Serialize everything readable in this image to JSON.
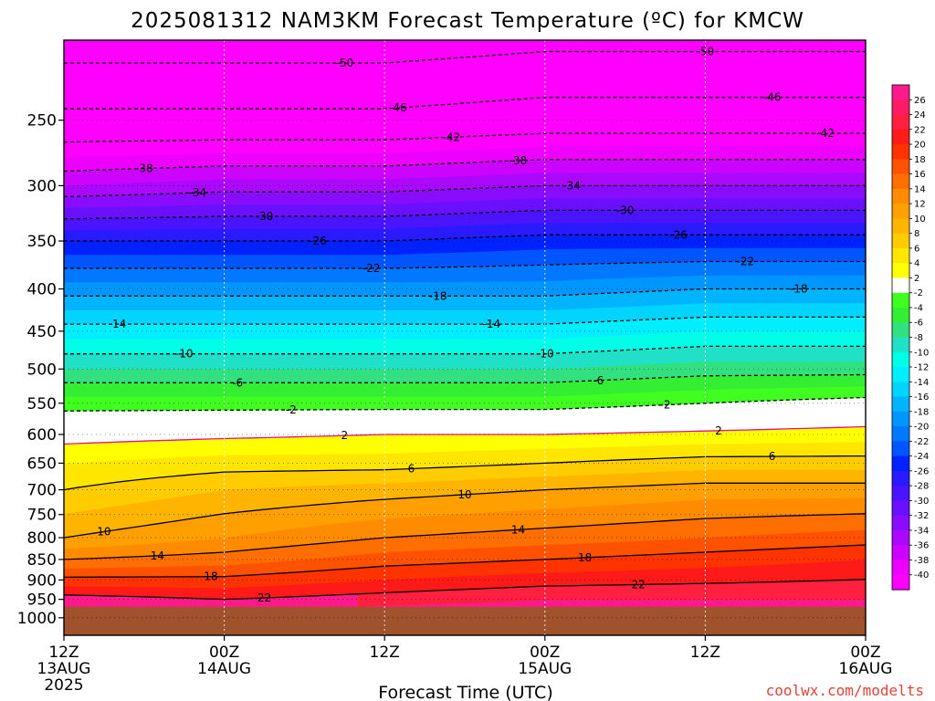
{
  "chart_data": {
    "type": "heatmap",
    "title": "2025081312 NAM3KM Forecast Temperature (ºC) for KMCW",
    "xlabel": "Forecast Time (UTC)",
    "ylabel": "",
    "x_ticks": [
      {
        "hours": 0,
        "lines": [
          "12Z",
          "13AUG",
          "2025"
        ]
      },
      {
        "hours": 12,
        "lines": [
          "00Z",
          "14AUG"
        ]
      },
      {
        "hours": 24,
        "lines": [
          "12Z"
        ]
      },
      {
        "hours": 36,
        "lines": [
          "00Z",
          "15AUG"
        ]
      },
      {
        "hours": 48,
        "lines": [
          "12Z"
        ]
      },
      {
        "hours": 60,
        "lines": [
          "00Z",
          "16AUG"
        ]
      }
    ],
    "xlim": [
      0,
      60
    ],
    "y_ticks": [
      250,
      300,
      350,
      400,
      450,
      500,
      550,
      600,
      650,
      700,
      750,
      800,
      850,
      900,
      950,
      1000
    ],
    "ylim": [
      1050,
      200
    ],
    "y_scale": "log",
    "ground_pressure": 970,
    "colorbar": {
      "levels": [
        26,
        24,
        22,
        20,
        18,
        16,
        14,
        12,
        10,
        8,
        6,
        4,
        2,
        -2,
        -4,
        -6,
        -8,
        -10,
        -12,
        -14,
        -16,
        -18,
        -20,
        -22,
        -24,
        -26,
        -28,
        -30,
        -32,
        -34,
        -36,
        -38,
        -40
      ],
      "colors": [
        "#ff1a8c",
        "#ff1a66",
        "#ff2040",
        "#ff1a1a",
        "#ff3300",
        "#ff5200",
        "#ff6e00",
        "#ff8c00",
        "#ffa000",
        "#ffb400",
        "#ffcc00",
        "#ffe600",
        "#ffff00",
        "#ffffff",
        "#40ff20",
        "#33ee33",
        "#33e080",
        "#20e0c8",
        "#00ffe6",
        "#00eeff",
        "#00d4ff",
        "#00b4ff",
        "#0096ff",
        "#0078ff",
        "#0055ff",
        "#0022ff",
        "#2a1aff",
        "#4a14ff",
        "#6a10ff",
        "#8a0cff",
        "#aa08ff",
        "#cc04ff",
        "#ee00ff",
        "#ff00ff"
      ]
    },
    "profiles": [
      {
        "hours": 0,
        "temps": [
          {
            "p": 1000,
            "t": 25
          },
          {
            "p": 950,
            "t": 23
          },
          {
            "p": 850,
            "t": 14
          },
          {
            "p": 800,
            "t": 10
          },
          {
            "p": 700,
            "t": 6
          },
          {
            "p": 650,
            "t": 4
          },
          {
            "p": 600,
            "t": 1
          },
          {
            "p": 550,
            "t": -3
          },
          {
            "p": 500,
            "t": -8
          },
          {
            "p": 450,
            "t": -13
          },
          {
            "p": 400,
            "t": -19
          },
          {
            "p": 350,
            "t": -26
          },
          {
            "p": 300,
            "t": -36
          },
          {
            "p": 250,
            "t": -45
          },
          {
            "p": 200,
            "t": -52
          }
        ]
      },
      {
        "hours": 12,
        "temps": [
          {
            "p": 1000,
            "t": 25
          },
          {
            "p": 950,
            "t": 22
          },
          {
            "p": 850,
            "t": 15
          },
          {
            "p": 800,
            "t": 12
          },
          {
            "p": 700,
            "t": 8
          },
          {
            "p": 650,
            "t": 5
          },
          {
            "p": 600,
            "t": 1.5
          },
          {
            "p": 550,
            "t": -3
          },
          {
            "p": 500,
            "t": -8
          },
          {
            "p": 450,
            "t": -13
          },
          {
            "p": 400,
            "t": -19
          },
          {
            "p": 350,
            "t": -26
          },
          {
            "p": 300,
            "t": -35
          },
          {
            "p": 250,
            "t": -45
          },
          {
            "p": 200,
            "t": -52
          }
        ]
      },
      {
        "hours": 24,
        "temps": [
          {
            "p": 1000,
            "t": 26
          },
          {
            "p": 950,
            "t": 23
          },
          {
            "p": 850,
            "t": 17
          },
          {
            "p": 800,
            "t": 14
          },
          {
            "p": 700,
            "t": 9
          },
          {
            "p": 650,
            "t": 5
          },
          {
            "p": 600,
            "t": 2
          },
          {
            "p": 550,
            "t": -3
          },
          {
            "p": 500,
            "t": -8
          },
          {
            "p": 450,
            "t": -13
          },
          {
            "p": 400,
            "t": -19
          },
          {
            "p": 350,
            "t": -26
          },
          {
            "p": 300,
            "t": -35
          },
          {
            "p": 250,
            "t": -45
          },
          {
            "p": 200,
            "t": -52
          }
        ]
      },
      {
        "hours": 36,
        "temps": [
          {
            "p": 1000,
            "t": 26
          },
          {
            "p": 950,
            "t": 24
          },
          {
            "p": 850,
            "t": 18
          },
          {
            "p": 800,
            "t": 15
          },
          {
            "p": 700,
            "t": 10
          },
          {
            "p": 650,
            "t": 6
          },
          {
            "p": 600,
            "t": 2
          },
          {
            "p": 550,
            "t": -3
          },
          {
            "p": 500,
            "t": -8
          },
          {
            "p": 450,
            "t": -13
          },
          {
            "p": 400,
            "t": -19
          },
          {
            "p": 350,
            "t": -25
          },
          {
            "p": 300,
            "t": -34
          },
          {
            "p": 250,
            "t": -44
          },
          {
            "p": 200,
            "t": -51
          }
        ]
      },
      {
        "hours": 48,
        "temps": [
          {
            "p": 1000,
            "t": 26
          },
          {
            "p": 950,
            "t": 24
          },
          {
            "p": 850,
            "t": 19
          },
          {
            "p": 800,
            "t": 16
          },
          {
            "p": 700,
            "t": 11
          },
          {
            "p": 650,
            "t": 7
          },
          {
            "p": 600,
            "t": 2.5
          },
          {
            "p": 550,
            "t": -2
          },
          {
            "p": 500,
            "t": -7
          },
          {
            "p": 450,
            "t": -12
          },
          {
            "p": 400,
            "t": -18
          },
          {
            "p": 350,
            "t": -25
          },
          {
            "p": 300,
            "t": -34
          },
          {
            "p": 250,
            "t": -44
          },
          {
            "p": 200,
            "t": -51
          }
        ]
      },
      {
        "hours": 60,
        "temps": [
          {
            "p": 1000,
            "t": 26
          },
          {
            "p": 950,
            "t": 24
          },
          {
            "p": 850,
            "t": 20
          },
          {
            "p": 800,
            "t": 17
          },
          {
            "p": 700,
            "t": 11
          },
          {
            "p": 650,
            "t": 7
          },
          {
            "p": 600,
            "t": 3
          },
          {
            "p": 550,
            "t": -1
          },
          {
            "p": 500,
            "t": -7
          },
          {
            "p": 450,
            "t": -12
          },
          {
            "p": 400,
            "t": -18
          },
          {
            "p": 350,
            "t": -25
          },
          {
            "p": 300,
            "t": -34
          },
          {
            "p": 250,
            "t": -44
          },
          {
            "p": 200,
            "t": -51
          }
        ]
      }
    ],
    "contour_levels": [
      -50,
      -46,
      -42,
      -38,
      -34,
      -30,
      -26,
      -22,
      -18,
      -14,
      -10,
      -6,
      -2,
      2,
      6,
      10,
      14,
      18,
      22
    ]
  },
  "credit": "coolwx.com/modelts",
  "colors": {
    "ground": "#a0522d",
    "credit": "#e0453a",
    "contour": "#000000",
    "freezing": "#e0108a"
  }
}
